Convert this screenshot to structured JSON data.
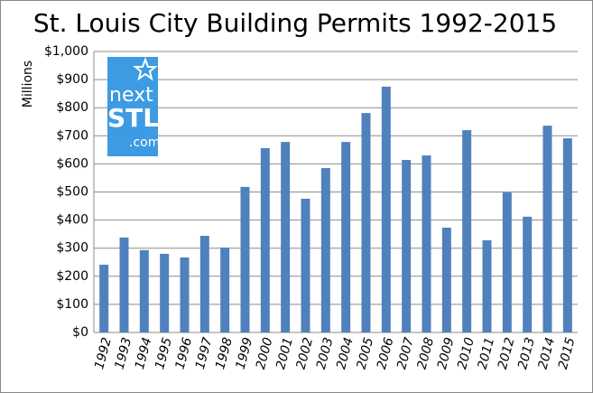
{
  "chart_data": {
    "type": "bar",
    "title": "St. Louis City Building Permits 1992-2015",
    "y_label": "Millions",
    "categories": [
      "1992",
      "1993",
      "1994",
      "1995",
      "1996",
      "1997",
      "1998",
      "1999",
      "2000",
      "2001",
      "2002",
      "2003",
      "2004",
      "2005",
      "2006",
      "2007",
      "2008",
      "2009",
      "2010",
      "2011",
      "2012",
      "2013",
      "2014",
      "2015"
    ],
    "values": [
      241,
      338,
      293,
      280,
      267,
      344,
      302,
      518,
      656,
      678,
      476,
      585,
      678,
      781,
      875,
      614,
      630,
      373,
      720,
      328,
      498,
      412,
      736,
      691
    ],
    "color": "#4f81bd",
    "ylim": [
      0,
      1000
    ],
    "yticks": [
      {
        "value": 0,
        "label": "$0"
      },
      {
        "value": 100,
        "label": "$100"
      },
      {
        "value": 200,
        "label": "$200"
      },
      {
        "value": 300,
        "label": "$300"
      },
      {
        "value": 400,
        "label": "$400"
      },
      {
        "value": 500,
        "label": "$500"
      },
      {
        "value": 600,
        "label": "$600"
      },
      {
        "value": 700,
        "label": "$700"
      },
      {
        "value": 800,
        "label": "$800"
      },
      {
        "value": 900,
        "label": "$900"
      },
      {
        "value": 1000,
        "label": "$1,000"
      }
    ],
    "grid": true
  },
  "logo": {
    "line1": "next",
    "line2": "STL",
    "line3": ".com"
  }
}
